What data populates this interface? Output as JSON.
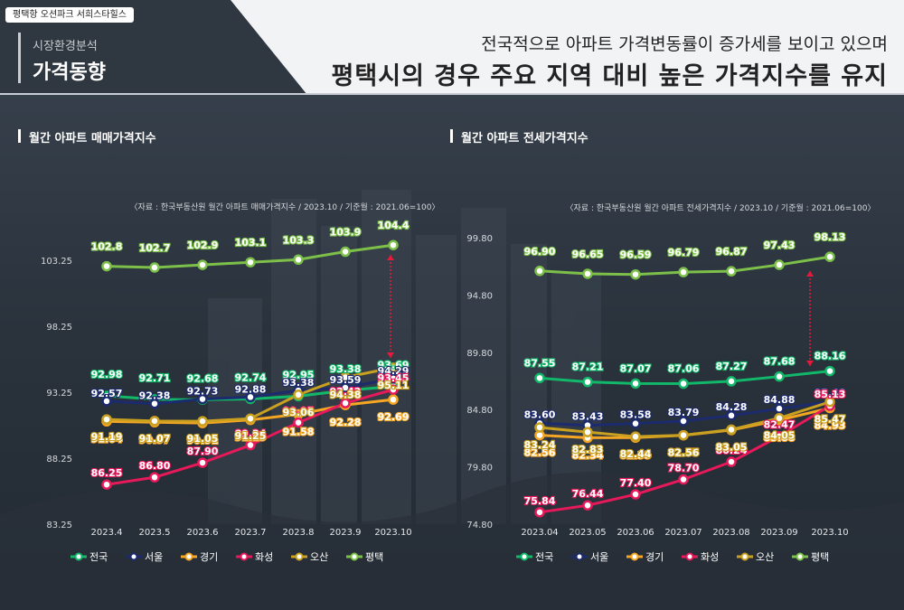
{
  "header": {
    "badge": "평택항 오션파크 서희스타힐스",
    "subtitle": "시장환경분석",
    "title": "가격동향",
    "headline1": "전국적으로 아파트 가격변동률이 증가세를 보이고 있으며",
    "headline2": "평택시의 경우 주요 지역 대비 높은 가격지수를 유지"
  },
  "chart_data": [
    {
      "type": "line",
      "title": "월간 아파트 매매가격지수",
      "source": "〈자료 : 한국부동산원 월간 아파트 매매가격지수 / 2023.10 / 기준월 : 2021.06=100〉",
      "categories": [
        "2023.4",
        "2023.5",
        "2023.6",
        "2023.7",
        "2023.8",
        "2023.9",
        "2023.10"
      ],
      "yticks": [
        "103.25",
        "98.25",
        "93.25",
        "88.25",
        "83.25"
      ],
      "ylim": [
        83.25,
        103.25
      ],
      "series": [
        {
          "name": "전국",
          "color": "#12b86a",
          "values": [
            92.98,
            92.71,
            92.68,
            92.74,
            92.95,
            93.38,
            93.69
          ],
          "labels": [
            "92.98",
            "92.71",
            "92.68",
            "92.74",
            "92.95",
            "93.38",
            "93.69"
          ]
        },
        {
          "name": "서울",
          "color": "#1c2a6e",
          "values": [
            92.57,
            92.38,
            92.73,
            92.88,
            93.38,
            93.59,
            94.29
          ],
          "labels": [
            "92.57",
            "92.38",
            "92.73",
            "92.88",
            "93.38",
            "93.59",
            "94.29"
          ]
        },
        {
          "name": "경기",
          "color": "#f5a623",
          "values": [
            91.04,
            90.97,
            90.91,
            91.15,
            91.58,
            92.28,
            92.69
          ],
          "labels": [
            "91.04",
            "90.97",
            "90.91",
            "91.15",
            "91.58",
            "92.28",
            "92.69"
          ]
        },
        {
          "name": "화성",
          "color": "#e8195a",
          "values": [
            86.25,
            86.8,
            87.9,
            89.24,
            90.95,
            92.42,
            93.45
          ],
          "labels": [
            "86.25",
            "86.80",
            "87.90",
            "89.24",
            "90.95",
            "92.42",
            "93.45"
          ]
        },
        {
          "name": "오산",
          "color": "#c9a020",
          "values": [
            91.19,
            91.07,
            91.05,
            91.25,
            93.06,
            94.38,
            95.11
          ],
          "labels": [
            "91.19",
            "91.07",
            "91.05",
            "91.25",
            "93.06",
            "94.38",
            "95.11"
          ]
        },
        {
          "name": "평택",
          "color": "#7cc04a",
          "values": [
            102.8,
            102.7,
            102.9,
            103.1,
            103.3,
            103.9,
            104.4
          ],
          "labels": [
            "102.8",
            "102.7",
            "102.9",
            "103.1",
            "103.3",
            "103.9",
            "104.4"
          ]
        }
      ]
    },
    {
      "type": "line",
      "title": "월간 아파트 전세가격지수",
      "source": "〈자료 : 한국부동산원 월간 아파트 전세가격지수 / 2023.10 / 기준월 : 2021.06=100〉",
      "categories": [
        "2023.04",
        "2023.05",
        "2023.06",
        "2023.07",
        "2023.08",
        "2023.09",
        "2023.10"
      ],
      "yticks": [
        "99.80",
        "94.80",
        "89.80",
        "84.80",
        "79.80",
        "74.80"
      ],
      "ylim": [
        74.8,
        99.8
      ],
      "series": [
        {
          "name": "전국",
          "color": "#12b86a",
          "values": [
            87.55,
            87.21,
            87.07,
            87.06,
            87.27,
            87.68,
            88.16
          ],
          "labels": [
            "87.55",
            "87.21",
            "87.07",
            "87.06",
            "87.27",
            "87.68",
            "88.16"
          ]
        },
        {
          "name": "서울",
          "color": "#1c2a6e",
          "values": [
            83.6,
            83.43,
            83.58,
            83.79,
            84.28,
            84.88,
            85.48
          ],
          "labels": [
            "83.60",
            "83.43",
            "83.58",
            "83.79",
            "84.28",
            "84.88",
            "85.48"
          ]
        },
        {
          "name": "경기",
          "color": "#f5a623",
          "values": [
            82.56,
            82.34,
            82.35,
            82.55,
            83.01,
            83.88,
            84.93
          ],
          "labels": [
            "82.56",
            "82.34",
            "82.35",
            "82.55",
            "83.01",
            "83.88",
            "84.93"
          ]
        },
        {
          "name": "화성",
          "color": "#e8195a",
          "values": [
            75.84,
            76.44,
            77.4,
            78.7,
            80.24,
            82.47,
            85.13
          ],
          "labels": [
            "75.84",
            "76.44",
            "77.40",
            "78.70",
            "80.24",
            "82.47",
            "85.13"
          ]
        },
        {
          "name": "오산",
          "color": "#c9a020",
          "values": [
            83.24,
            82.83,
            82.44,
            82.56,
            83.05,
            84.05,
            85.47
          ],
          "labels": [
            "83.24",
            "82.83",
            "82.44",
            "82.56",
            "83.05",
            "84.05",
            "85.47"
          ]
        },
        {
          "name": "평택",
          "color": "#7cc04a",
          "values": [
            96.9,
            96.65,
            96.59,
            96.79,
            96.87,
            97.43,
            98.13
          ],
          "labels": [
            "96.90",
            "96.65",
            "96.59",
            "96.79",
            "96.87",
            "97.43",
            "98.13"
          ]
        }
      ]
    }
  ]
}
